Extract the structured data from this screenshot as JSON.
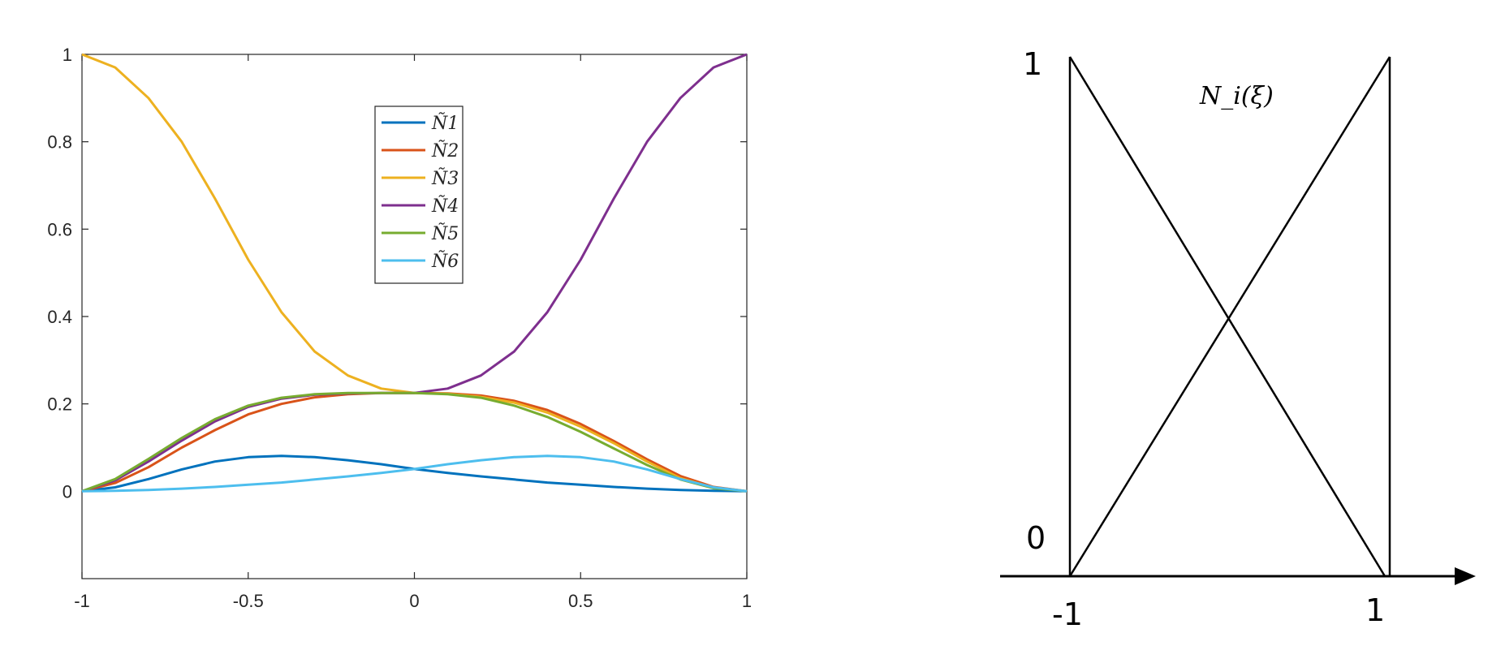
{
  "chart_data": [
    {
      "type": "line",
      "xlim": [
        -1,
        1
      ],
      "ylim": [
        -0.2,
        1
      ],
      "x_ticks": [
        "-1",
        "-0.5",
        "0",
        "0.5",
        "1"
      ],
      "y_ticks": [
        "0",
        "0.2",
        "0.4",
        "0.6",
        "0.8",
        "1"
      ],
      "legend_position": "top-center",
      "grid": false,
      "series": [
        {
          "name": "Ñ1",
          "color": "#0072BD",
          "x": [
            -1,
            -0.9,
            -0.8,
            -0.7,
            -0.6,
            -0.5,
            -0.4,
            -0.3,
            -0.2,
            -0.1,
            0,
            0.1,
            0.2,
            0.3,
            0.4,
            0.5,
            0.6,
            0.7,
            0.8,
            0.9,
            1
          ],
          "y": [
            0,
            0.009,
            0.028,
            0.05,
            0.068,
            0.078,
            0.081,
            0.078,
            0.071,
            0.062,
            0.051,
            0.042,
            0.034,
            0.027,
            0.02,
            0.015,
            0.01,
            0.006,
            0.003,
            0.001,
            0
          ]
        },
        {
          "name": "Ñ2",
          "color": "#D95319",
          "x": [
            -1,
            -0.9,
            -0.8,
            -0.7,
            -0.6,
            -0.5,
            -0.4,
            -0.3,
            -0.2,
            -0.1,
            0,
            0.1,
            0.2,
            0.3,
            0.4,
            0.5,
            0.6,
            0.7,
            0.8,
            0.9,
            1
          ],
          "y": [
            0,
            0.019,
            0.055,
            0.1,
            0.14,
            0.176,
            0.2,
            0.215,
            0.222,
            0.225,
            0.225,
            0.224,
            0.219,
            0.207,
            0.186,
            0.154,
            0.115,
            0.073,
            0.035,
            0.01,
            0
          ]
        },
        {
          "name": "Ñ3",
          "color": "#EDB120",
          "x": [
            -1,
            -0.9,
            -0.8,
            -0.7,
            -0.6,
            -0.5,
            -0.4,
            -0.3,
            -0.2,
            -0.1,
            0,
            0.1,
            0.2,
            0.3,
            0.4,
            0.5,
            0.6,
            0.7,
            0.8,
            0.9,
            1
          ],
          "y": [
            1,
            0.97,
            0.9,
            0.8,
            0.67,
            0.53,
            0.41,
            0.32,
            0.265,
            0.235,
            0.225,
            0.223,
            0.216,
            0.203,
            0.18,
            0.148,
            0.11,
            0.068,
            0.03,
            0.008,
            0
          ]
        },
        {
          "name": "Ñ4",
          "color": "#7E2F8E",
          "x": [
            -1,
            -0.9,
            -0.8,
            -0.7,
            -0.6,
            -0.5,
            -0.4,
            -0.3,
            -0.2,
            -0.1,
            0,
            0.1,
            0.2,
            0.3,
            0.4,
            0.5,
            0.6,
            0.7,
            0.8,
            0.9,
            1
          ],
          "y": [
            0,
            0.025,
            0.068,
            0.116,
            0.16,
            0.193,
            0.212,
            0.221,
            0.224,
            0.225,
            0.225,
            0.235,
            0.265,
            0.32,
            0.41,
            0.53,
            0.67,
            0.8,
            0.9,
            0.97,
            1
          ]
        },
        {
          "name": "Ñ5",
          "color": "#77AC30",
          "x": [
            -1,
            -0.9,
            -0.8,
            -0.7,
            -0.6,
            -0.5,
            -0.4,
            -0.3,
            -0.2,
            -0.1,
            0,
            0.1,
            0.2,
            0.3,
            0.4,
            0.5,
            0.6,
            0.7,
            0.8,
            0.9,
            1
          ],
          "y": [
            0,
            0.028,
            0.074,
            0.122,
            0.165,
            0.196,
            0.214,
            0.222,
            0.225,
            0.225,
            0.225,
            0.222,
            0.214,
            0.196,
            0.17,
            0.136,
            0.098,
            0.06,
            0.027,
            0.007,
            0
          ]
        },
        {
          "name": "Ñ6",
          "color": "#4DBEEE",
          "x": [
            -1,
            -0.9,
            -0.8,
            -0.7,
            -0.6,
            -0.5,
            -0.4,
            -0.3,
            -0.2,
            -0.1,
            0,
            0.1,
            0.2,
            0.3,
            0.4,
            0.5,
            0.6,
            0.7,
            0.8,
            0.9,
            1
          ],
          "y": [
            0,
            0.001,
            0.003,
            0.006,
            0.01,
            0.015,
            0.02,
            0.027,
            0.034,
            0.042,
            0.051,
            0.062,
            0.071,
            0.078,
            0.081,
            0.078,
            0.068,
            0.05,
            0.028,
            0.009,
            0
          ]
        }
      ]
    },
    {
      "type": "line",
      "title": "N_i(ξ)",
      "x_ticks": [
        "-1",
        "1"
      ],
      "y_ticks": [
        "0",
        "1"
      ],
      "xlim": [
        -1,
        1
      ],
      "ylim": [
        0,
        1
      ],
      "series": [
        {
          "x": [
            -1,
            1
          ],
          "y": [
            1,
            0
          ]
        },
        {
          "x": [
            -1,
            1
          ],
          "y": [
            0,
            1
          ]
        }
      ]
    }
  ]
}
